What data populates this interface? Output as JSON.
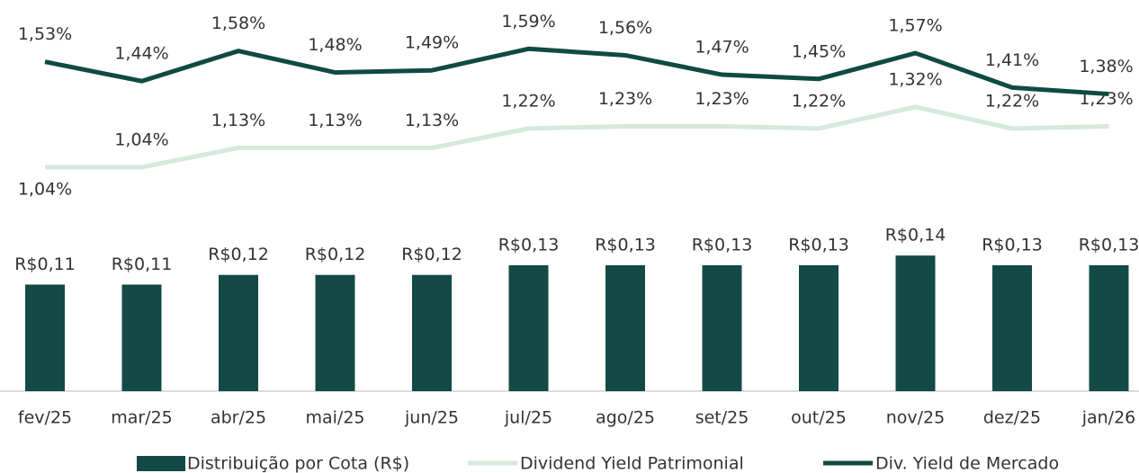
{
  "chart_data": {
    "type": "bar-line",
    "categories": [
      "fev/25",
      "mar/25",
      "abr/25",
      "mai/25",
      "jun/25",
      "jul/25",
      "ago/25",
      "set/25",
      "out/25",
      "nov/25",
      "dez/25",
      "jan/26"
    ],
    "ylim": [
      0,
      0.4
    ],
    "y2lim": [
      0,
      1.8
    ],
    "series": [
      {
        "name": "Distribuição por Cota (R$)",
        "type": "bar",
        "color": "#134a46",
        "values": [
          0.11,
          0.11,
          0.12,
          0.12,
          0.12,
          0.13,
          0.13,
          0.13,
          0.13,
          0.14,
          0.13,
          0.13
        ],
        "value_labels": [
          "R$0,11",
          "R$0,11",
          "R$0,12",
          "R$0,12",
          "R$0,12",
          "R$0,13",
          "R$0,13",
          "R$0,13",
          "R$0,13",
          "R$0,14",
          "R$0,13",
          "R$0,13"
        ]
      },
      {
        "name": "Dividend Yield Patrimonial",
        "type": "line",
        "axis": "y2",
        "color": "#d5e9dc",
        "values": [
          1.04,
          1.04,
          1.13,
          1.13,
          1.13,
          1.22,
          1.23,
          1.23,
          1.22,
          1.32,
          1.22,
          1.23
        ],
        "value_labels": [
          "1,04%",
          "1,04%",
          "1,13%",
          "1,13%",
          "1,13%",
          "1,22%",
          "1,23%",
          "1,23%",
          "1,22%",
          "1,32%",
          "1,22%",
          "1,23%"
        ]
      },
      {
        "name": "Div. Yield de Mercado",
        "type": "line",
        "axis": "y2",
        "color": "#0f4a43",
        "values": [
          1.53,
          1.44,
          1.58,
          1.48,
          1.49,
          1.59,
          1.56,
          1.47,
          1.45,
          1.57,
          1.41,
          1.38
        ],
        "value_labels": [
          "1,53%",
          "1,44%",
          "1,58%",
          "1,48%",
          "1,49%",
          "1,59%",
          "1,56%",
          "1,47%",
          "1,45%",
          "1,57%",
          "1,41%",
          "1,38%"
        ]
      }
    ]
  }
}
